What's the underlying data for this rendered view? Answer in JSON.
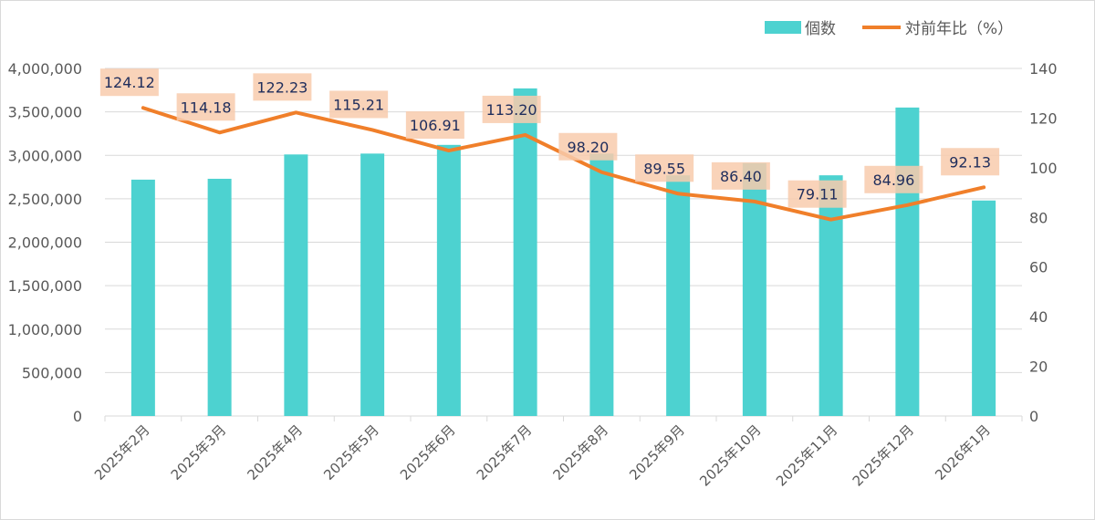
{
  "chart_data": {
    "type": "bar+line",
    "categories": [
      "2025年2月",
      "2025年3月",
      "2025年4月",
      "2025年5月",
      "2025年6月",
      "2025年7月",
      "2025年8月",
      "2025年9月",
      "2025年10月",
      "2025年11月",
      "2025年12月",
      "2026年1月"
    ],
    "series": [
      {
        "name": "個数",
        "type": "bar",
        "axis": "left",
        "color": "#4DD2D0",
        "values": [
          2720000,
          2730000,
          3010000,
          3020000,
          3120000,
          3770000,
          3020000,
          2770000,
          2910000,
          2770000,
          3550000,
          2480000
        ]
      },
      {
        "name": "対前年比（%）",
        "type": "line",
        "axis": "right",
        "color": "#F07F2A",
        "values": [
          124.12,
          114.18,
          122.23,
          115.21,
          106.91,
          113.2,
          98.2,
          89.55,
          86.4,
          79.11,
          84.96,
          92.13
        ],
        "labels": [
          "124.12",
          "114.18",
          "122.23",
          "115.21",
          "106.91",
          "113.20",
          "98.20",
          "89.55",
          "86.40",
          "79.11",
          "84.96",
          "92.13"
        ]
      }
    ],
    "left_axis": {
      "range": [
        0,
        4000000
      ],
      "ticks": [
        "0",
        "500,000",
        "1,000,000",
        "1,500,000",
        "2,000,000",
        "2,500,000",
        "3,000,000",
        "3,500,000",
        "4,000,000"
      ]
    },
    "right_axis": {
      "range": [
        0,
        140
      ],
      "ticks": [
        "0",
        "20",
        "40",
        "60",
        "80",
        "100",
        "120",
        "140"
      ]
    },
    "grid": true,
    "legend": {
      "placement": "top-right",
      "items": [
        "個数",
        "対前年比（%）"
      ]
    },
    "label_fill": "#F8CBAD",
    "label_text_color": "#1F2D5C"
  }
}
